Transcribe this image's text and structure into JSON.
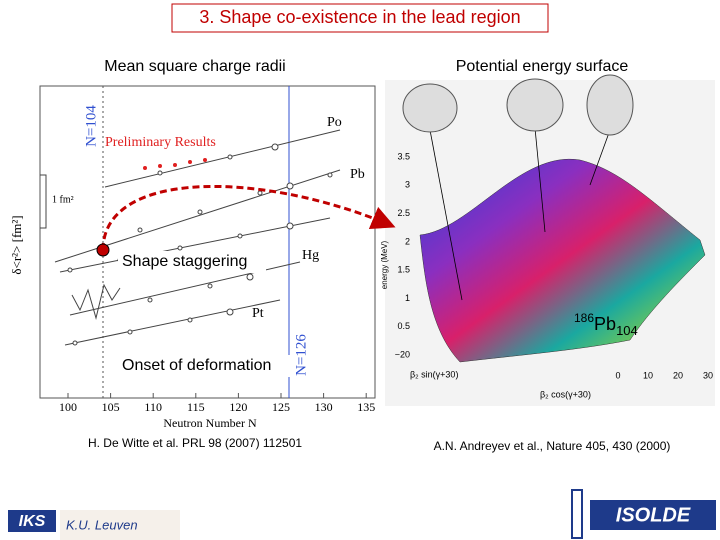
{
  "header": {
    "title": "3. Shape co-existence in the lead region"
  },
  "left_panel": {
    "heading": "Mean square charge radii",
    "plot": {
      "preliminary": "Preliminary Results",
      "magic_104": "N=104",
      "magic_126": "N=126",
      "isotopes": [
        "Po",
        "Pb",
        "Hg",
        "Pt"
      ],
      "scale_label": "1 fm²",
      "y_label": "δ<r²> [fm²]",
      "x_label": "Neutron Number N",
      "x_ticks": [
        "100",
        "105",
        "110",
        "115",
        "120",
        "125",
        "130",
        "135"
      ]
    },
    "annotations": [
      "Shape staggering",
      "Onset of deformation"
    ],
    "citation": "H. De Witte et al. PRL 98 (2007) 112501"
  },
  "right_panel": {
    "heading": "Potential energy surface",
    "plot": {
      "y_label": "energy (MeV)",
      "y_ticks": [
        "3.5",
        "3",
        "2.5",
        "2",
        "1.5",
        "1",
        "0.5",
        "−20"
      ],
      "x_ticks": [
        "0",
        "10",
        "20",
        "30"
      ],
      "axis_1": "β₂ sin(γ+30)",
      "axis_2": "β₂ cos(γ+30)",
      "nucleus": {
        "mass": "186",
        "symbol": "Pb",
        "neutrons": "104"
      }
    },
    "citation": "A.N. Andreyev et al., Nature 405, 430 (2000)"
  },
  "footer": {
    "institute": "K.U. Leuven",
    "left_logo": "IKS",
    "right_logo": "ISOLDE"
  }
}
